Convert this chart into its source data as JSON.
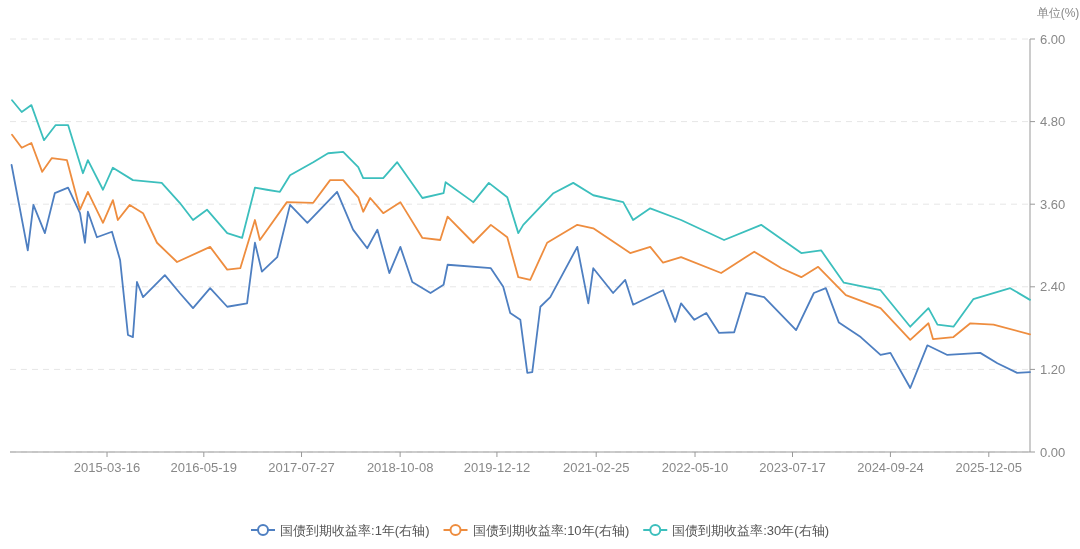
{
  "chart_data": {
    "type": "line",
    "ylabel": "单位(%)",
    "xlim": [
      "2014-01-09",
      "2026-06-06"
    ],
    "xticks": [
      "2015-03-16",
      "2016-05-19",
      "2017-07-27",
      "2018-10-08",
      "2019-12-12",
      "2021-02-25",
      "2022-05-10",
      "2023-07-17",
      "2024-09-24",
      "2025-12-05"
    ],
    "ylim": [
      0,
      6
    ],
    "yticks": [
      {
        "value": 0,
        "label": "0.00"
      },
      {
        "value": 1.2,
        "label": "1.20"
      },
      {
        "value": 2.4,
        "label": "2.40"
      },
      {
        "value": 3.6,
        "label": "3.60"
      },
      {
        "value": 4.8,
        "label": "4.80"
      },
      {
        "value": 6,
        "label": "6.00"
      }
    ],
    "grid": "y",
    "legend": "bottom",
    "series": [
      {
        "name": "国债到期收益率:1年(右轴)",
        "color": "#4e7fc1",
        "x": [
          "2014-01-16",
          "2014-03-29",
          "2014-04-23",
          "2014-06-13",
          "2014-07-27",
          "2014-09-24",
          "2014-11-16",
          "2014-12-08",
          "2014-12-21",
          "2015-01-30",
          "2015-04-07",
          "2015-05-13",
          "2015-06-17",
          "2015-07-09",
          "2015-07-27",
          "2015-08-23",
          "2015-11-28",
          "2016-02-02",
          "2016-04-01",
          "2016-06-16",
          "2016-08-31",
          "2016-11-27",
          "2017-01-01",
          "2017-02-01",
          "2017-04-10",
          "2017-06-06",
          "2017-08-22",
          "2018-01-01",
          "2018-03-13",
          "2018-05-15",
          "2018-06-29",
          "2018-08-21",
          "2018-10-09",
          "2018-12-01",
          "2019-02-20",
          "2019-04-19",
          "2019-05-07",
          "2019-11-15",
          "2020-01-09",
          "2020-02-09",
          "2020-03-25",
          "2020-04-25",
          "2020-05-17",
          "2020-06-22",
          "2020-08-05",
          "2020-12-03",
          "2021-01-21",
          "2021-02-12",
          "2021-05-11",
          "2021-07-04",
          "2021-08-08",
          "2021-12-19",
          "2022-02-11",
          "2022-03-09",
          "2022-05-07",
          "2022-06-29",
          "2022-08-25",
          "2022-10-31",
          "2022-12-23",
          "2023-03-13",
          "2023-08-02",
          "2023-10-20",
          "2023-12-12",
          "2024-02-08",
          "2024-05-15",
          "2024-08-11",
          "2024-09-24",
          "2024-12-21",
          "2025-03-07",
          "2025-06-04",
          "2025-10-28",
          "2026-01-12",
          "2026-04-10",
          "2026-06-06"
        ],
        "values": [
          4.17,
          2.93,
          3.59,
          3.18,
          3.76,
          3.84,
          3.47,
          3.04,
          3.49,
          3.12,
          3.2,
          2.79,
          1.7,
          1.67,
          2.47,
          2.25,
          2.57,
          2.31,
          2.09,
          2.38,
          2.11,
          2.16,
          3.04,
          2.62,
          2.83,
          3.59,
          3.33,
          3.78,
          3.23,
          2.96,
          3.23,
          2.6,
          2.98,
          2.47,
          2.31,
          2.43,
          2.72,
          2.67,
          2.4,
          2.02,
          1.92,
          1.15,
          1.16,
          2.11,
          2.25,
          2.98,
          2.16,
          2.67,
          2.31,
          2.5,
          2.14,
          2.35,
          1.89,
          2.16,
          1.92,
          2.02,
          1.73,
          1.74,
          2.31,
          2.25,
          1.77,
          2.31,
          2.38,
          1.88,
          1.67,
          1.41,
          1.44,
          0.93,
          1.55,
          1.41,
          1.44,
          1.29,
          1.15,
          1.16
        ]
      },
      {
        "name": "国债到期收益率:10年(右轴)",
        "color": "#ee8d3f",
        "x": [
          "2014-01-18",
          "2014-03-02",
          "2014-04-14",
          "2014-06-01",
          "2014-07-14",
          "2014-09-19",
          "2014-11-16",
          "2014-12-21",
          "2015-02-26",
          "2015-04-11",
          "2015-05-03",
          "2015-06-25",
          "2015-08-23",
          "2015-10-24",
          "2016-01-21",
          "2016-06-16",
          "2016-08-31",
          "2016-10-28",
          "2017-01-01",
          "2017-01-23",
          "2017-05-23",
          "2017-09-17",
          "2017-12-01",
          "2018-01-28",
          "2018-04-05",
          "2018-04-27",
          "2018-05-28",
          "2018-07-25",
          "2018-10-09",
          "2019-01-15",
          "2019-04-04",
          "2019-05-07",
          "2019-08-29",
          "2019-11-15",
          "2020-01-27",
          "2020-03-16",
          "2020-05-08",
          "2020-07-22",
          "2020-12-03",
          "2021-02-12",
          "2021-07-26",
          "2021-10-23",
          "2021-12-19",
          "2022-03-09",
          "2022-09-03",
          "2023-01-28",
          "2023-05-29",
          "2023-08-25",
          "2023-11-08",
          "2024-03-10",
          "2024-08-11",
          "2024-12-21",
          "2025-03-12",
          "2025-04-01",
          "2025-07-01",
          "2025-09-14",
          "2025-12-26",
          "2026-06-06"
        ],
        "values": [
          4.61,
          4.42,
          4.49,
          4.07,
          4.27,
          4.24,
          3.52,
          3.78,
          3.33,
          3.66,
          3.37,
          3.59,
          3.47,
          3.04,
          2.76,
          2.98,
          2.65,
          2.67,
          3.37,
          3.08,
          3.63,
          3.62,
          3.95,
          3.95,
          3.7,
          3.49,
          3.69,
          3.47,
          3.63,
          3.11,
          3.08,
          3.42,
          3.04,
          3.3,
          3.12,
          2.54,
          2.5,
          3.04,
          3.3,
          3.25,
          2.89,
          2.98,
          2.75,
          2.83,
          2.6,
          2.91,
          2.67,
          2.54,
          2.69,
          2.28,
          2.09,
          1.63,
          1.87,
          1.64,
          1.67,
          1.87,
          1.85,
          1.71
        ]
      },
      {
        "name": "国债到期收益率:30年(右轴)",
        "color": "#3cbfbd",
        "x": [
          "2014-01-18",
          "2014-03-02",
          "2014-04-14",
          "2014-06-09",
          "2014-07-31",
          "2014-09-24",
          "2014-11-29",
          "2014-12-21",
          "2015-02-26",
          "2015-04-11",
          "2015-07-09",
          "2015-11-14",
          "2016-02-02",
          "2016-04-01",
          "2016-06-02",
          "2016-08-31",
          "2016-11-05",
          "2017-01-01",
          "2017-02-23",
          "2017-04-22",
          "2017-06-06",
          "2017-09-17",
          "2017-11-22",
          "2018-01-28",
          "2018-04-05",
          "2018-04-27",
          "2018-07-25",
          "2018-09-25",
          "2019-01-15",
          "2019-04-19",
          "2019-04-28",
          "2019-08-29",
          "2019-11-06",
          "2020-01-27",
          "2020-03-16",
          "2020-04-07",
          "2020-08-19",
          "2020-11-15",
          "2021-02-12",
          "2021-06-25",
          "2021-08-08",
          "2021-10-23",
          "2022-03-09",
          "2022-09-16",
          "2023-02-28",
          "2023-08-25",
          "2023-11-21",
          "2024-03-01",
          "2024-08-11",
          "2024-12-21",
          "2025-03-12",
          "2025-04-21",
          "2025-07-01",
          "2025-09-27",
          "2026-03-10",
          "2026-06-06"
        ],
        "values": [
          5.11,
          4.94,
          5.04,
          4.53,
          4.75,
          4.75,
          4.05,
          4.24,
          3.81,
          4.13,
          3.95,
          3.91,
          3.62,
          3.37,
          3.52,
          3.18,
          3.11,
          3.84,
          3.81,
          3.78,
          4.02,
          4.21,
          4.34,
          4.36,
          4.14,
          3.98,
          3.98,
          4.21,
          3.69,
          3.76,
          3.92,
          3.63,
          3.91,
          3.7,
          3.18,
          3.3,
          3.76,
          3.91,
          3.73,
          3.63,
          3.37,
          3.54,
          3.37,
          3.08,
          3.3,
          2.89,
          2.93,
          2.46,
          2.35,
          1.82,
          2.09,
          1.85,
          1.82,
          2.22,
          2.38,
          2.21
        ]
      }
    ]
  }
}
